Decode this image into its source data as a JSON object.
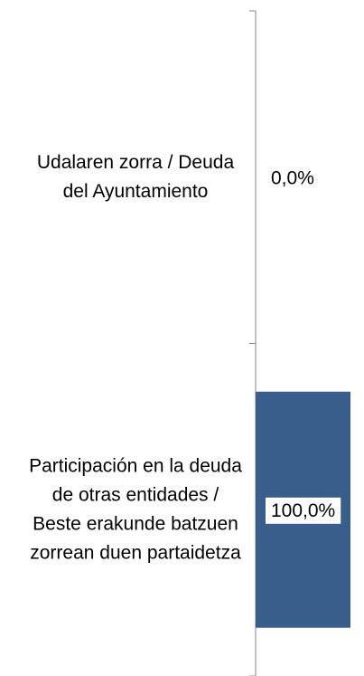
{
  "chart_data": {
    "type": "hbar",
    "categories": [
      "Udalaren zorra  / Deuda del Ayuntamiento",
      "Participación en la deuda de otras entidades / Beste erakunde batzuen zorrean duen partaidetza"
    ],
    "values": [
      0,
      100
    ],
    "value_labels": [
      "0,0%",
      "100,0%"
    ],
    "color": "#3a5e8c",
    "xlim": [
      0,
      100
    ]
  }
}
